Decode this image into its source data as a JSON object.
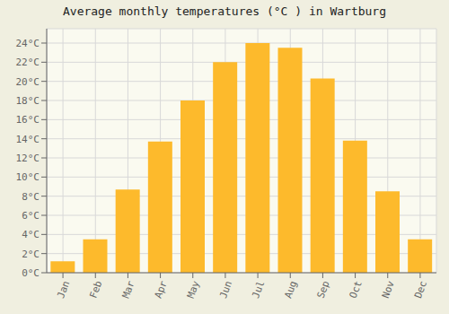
{
  "chart_data": {
    "type": "bar",
    "title": "Average monthly temperatures (°C ) in Wartburg",
    "categories": [
      "Jan",
      "Feb",
      "Mar",
      "Apr",
      "May",
      "Jun",
      "Jul",
      "Aug",
      "Sep",
      "Oct",
      "Nov",
      "Dec"
    ],
    "values": [
      1.2,
      3.5,
      8.7,
      13.7,
      18.0,
      22.0,
      24.0,
      23.5,
      20.3,
      13.8,
      8.5,
      3.5
    ],
    "color": "#FDBA2C",
    "ylim": [
      0,
      25.5
    ],
    "yticks": [
      {
        "value": 0,
        "label": "0°C"
      },
      {
        "value": 2,
        "label": "2°C"
      },
      {
        "value": 4,
        "label": "4°C"
      },
      {
        "value": 6,
        "label": "6°C"
      },
      {
        "value": 8,
        "label": "8°C"
      },
      {
        "value": 10,
        "label": "10°C"
      },
      {
        "value": 12,
        "label": "12°C"
      },
      {
        "value": 14,
        "label": "14°C"
      },
      {
        "value": 16,
        "label": "16°C"
      },
      {
        "value": 18,
        "label": "18°C"
      },
      {
        "value": 20,
        "label": "20°C"
      },
      {
        "value": 22,
        "label": "22°C"
      },
      {
        "value": 24,
        "label": "24°C"
      }
    ],
    "grid": true
  }
}
